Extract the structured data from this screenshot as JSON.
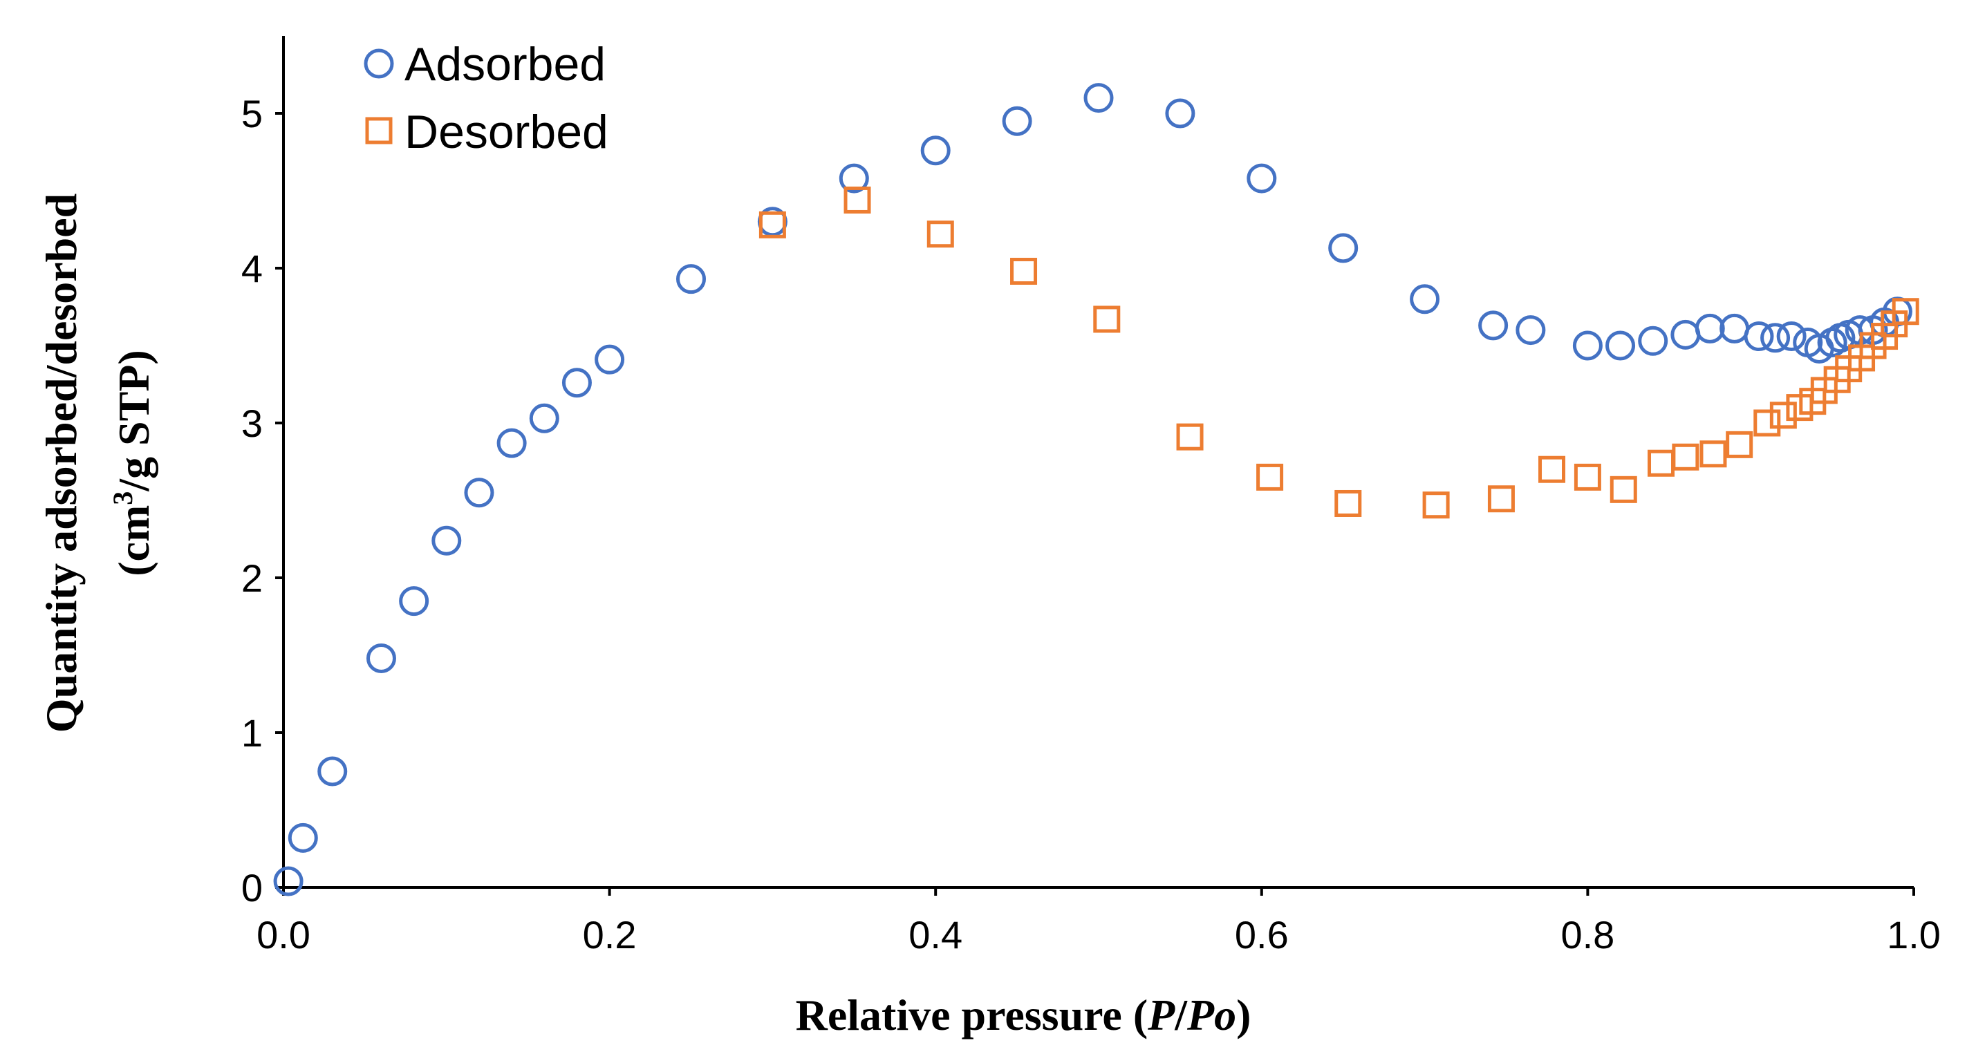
{
  "chart_data": {
    "type": "scatter",
    "xlabel_main": "Relative pressure (",
    "xlabel_var1": "P",
    "xlabel_sep": "/",
    "xlabel_var2": "Po",
    "xlabel_end": ")",
    "ylabel_line1": "Quantity adsorbed/desorbed",
    "ylabel_line2_a": "(cm",
    "ylabel_line2_sup": "3",
    "ylabel_line2_b": "/g STP)",
    "xlim": [
      0,
      1
    ],
    "ylim": [
      0,
      5.5
    ],
    "x_ticks": [
      "0.0",
      "0.2",
      "0.4",
      "0.6",
      "0.8",
      "1.0"
    ],
    "y_ticks": [
      "0",
      "1",
      "2",
      "3",
      "4",
      "5"
    ],
    "grid": false,
    "legend_position": "top-left",
    "series": [
      {
        "name": "Adsorbed",
        "marker": "circle",
        "color": "#4472C4",
        "points": [
          [
            0.003,
            0.04
          ],
          [
            0.012,
            0.32
          ],
          [
            0.03,
            0.75
          ],
          [
            0.06,
            1.48
          ],
          [
            0.08,
            1.85
          ],
          [
            0.1,
            2.24
          ],
          [
            0.12,
            2.55
          ],
          [
            0.14,
            2.87
          ],
          [
            0.16,
            3.03
          ],
          [
            0.18,
            3.26
          ],
          [
            0.2,
            3.41
          ],
          [
            0.25,
            3.93
          ],
          [
            0.3,
            4.3
          ],
          [
            0.35,
            4.58
          ],
          [
            0.4,
            4.76
          ],
          [
            0.45,
            4.95
          ],
          [
            0.5,
            5.1
          ],
          [
            0.55,
            5.0
          ],
          [
            0.6,
            4.58
          ],
          [
            0.65,
            4.13
          ],
          [
            0.7,
            3.8
          ],
          [
            0.742,
            3.63
          ],
          [
            0.765,
            3.6
          ],
          [
            0.8,
            3.5
          ],
          [
            0.82,
            3.5
          ],
          [
            0.84,
            3.53
          ],
          [
            0.86,
            3.57
          ],
          [
            0.875,
            3.61
          ],
          [
            0.89,
            3.61
          ],
          [
            0.905,
            3.56
          ],
          [
            0.915,
            3.55
          ],
          [
            0.925,
            3.56
          ],
          [
            0.935,
            3.52
          ],
          [
            0.942,
            3.48
          ],
          [
            0.95,
            3.52
          ],
          [
            0.955,
            3.55
          ],
          [
            0.96,
            3.57
          ],
          [
            0.967,
            3.6
          ],
          [
            0.975,
            3.6
          ],
          [
            0.982,
            3.65
          ],
          [
            0.99,
            3.72
          ]
        ]
      },
      {
        "name": "Desorbed",
        "marker": "square",
        "color": "#ED7D31",
        "points": [
          [
            0.3,
            4.28
          ],
          [
            0.352,
            4.44
          ],
          [
            0.403,
            4.22
          ],
          [
            0.454,
            3.98
          ],
          [
            0.505,
            3.67
          ],
          [
            0.556,
            2.91
          ],
          [
            0.605,
            2.65
          ],
          [
            0.653,
            2.48
          ],
          [
            0.707,
            2.47
          ],
          [
            0.747,
            2.51
          ],
          [
            0.778,
            2.7
          ],
          [
            0.8,
            2.65
          ],
          [
            0.822,
            2.57
          ],
          [
            0.845,
            2.74
          ],
          [
            0.86,
            2.78
          ],
          [
            0.877,
            2.8
          ],
          [
            0.893,
            2.86
          ],
          [
            0.91,
            3.0
          ],
          [
            0.92,
            3.05
          ],
          [
            0.93,
            3.1
          ],
          [
            0.938,
            3.14
          ],
          [
            0.945,
            3.21
          ],
          [
            0.953,
            3.28
          ],
          [
            0.96,
            3.35
          ],
          [
            0.968,
            3.42
          ],
          [
            0.975,
            3.5
          ],
          [
            0.982,
            3.56
          ],
          [
            0.988,
            3.64
          ],
          [
            0.995,
            3.72
          ]
        ]
      }
    ]
  }
}
